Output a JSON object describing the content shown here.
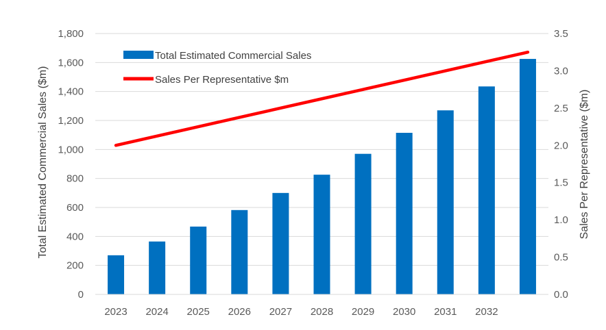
{
  "chart_data": {
    "type": "bar",
    "title": "",
    "categories": [
      "2023",
      "2024",
      "2025",
      "2026",
      "2027",
      "2028",
      "2029",
      "2030",
      "2031",
      "2032",
      ""
    ],
    "series": [
      {
        "name": "Total Estimated Commercial Sales",
        "type": "bar",
        "axis": "left",
        "color": "#0070C0",
        "values": [
          270,
          365,
          468,
          582,
          700,
          826,
          970,
          1115,
          1270,
          1435,
          1625
        ]
      },
      {
        "name": "Sales Per Representative $m",
        "type": "line",
        "axis": "right",
        "color": "#FF0000",
        "values": [
          2.0,
          2.125,
          2.25,
          2.375,
          2.5,
          2.625,
          2.75,
          2.875,
          3.0,
          3.125,
          3.25
        ]
      }
    ],
    "ylabel": "Total Estimated Commercial Sales ($m)",
    "ylim": [
      0,
      1800
    ],
    "yticks": [
      "0",
      "200",
      "400",
      "600",
      "800",
      "1,000",
      "1,200",
      "1,400",
      "1,600",
      "1,800"
    ],
    "y2label": "Sales Per Representative ($m)",
    "y2lim": [
      0,
      3.5
    ],
    "y2ticks": [
      "0.0",
      "0.5",
      "1.0",
      "1.5",
      "2.0",
      "2.5",
      "3.0",
      "3.5"
    ],
    "grid": true,
    "legend_position": "top-left"
  }
}
